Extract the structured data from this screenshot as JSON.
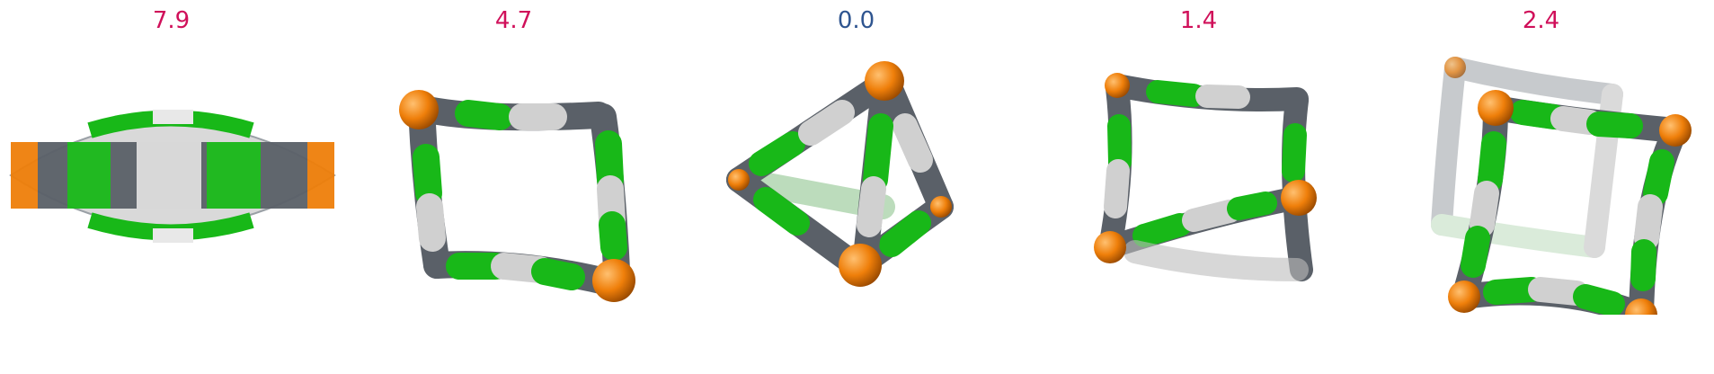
{
  "panels": [
    {
      "score": "7.9",
      "score_color": "#d0105a",
      "molecule_icon": "flattened-cage-molecule"
    },
    {
      "score": "4.7",
      "score_color": "#d0105a",
      "molecule_icon": "square-ring-molecule"
    },
    {
      "score": "0.0",
      "score_color": "#2f5590",
      "molecule_icon": "tetrahedral-cage-molecule"
    },
    {
      "score": "1.4",
      "score_color": "#d0105a",
      "molecule_icon": "twisted-ring-molecule"
    },
    {
      "score": "2.4",
      "score_color": "#d0105a",
      "molecule_icon": "cubic-cage-molecule"
    }
  ],
  "colors": {
    "vertex": "#ef7f0a",
    "green": "#18b818",
    "dark": "#555b62",
    "light": "#d2d2d2"
  }
}
